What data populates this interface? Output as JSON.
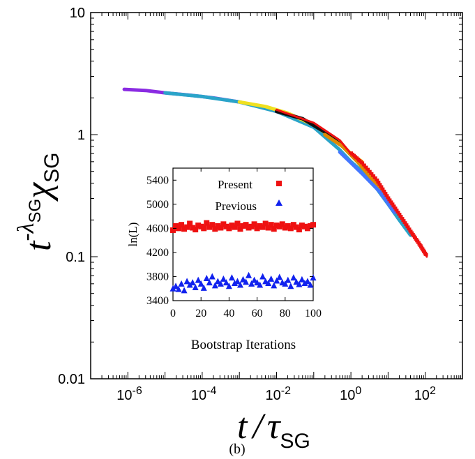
{
  "caption": "(b)",
  "chart_data": [
    {
      "type": "line",
      "xscale": "log",
      "yscale": "log",
      "xlim": [
        1e-07,
        1000
      ],
      "ylim": [
        0.01,
        10
      ],
      "xlabel": "t / τSG",
      "ylabel": "t−λSG χSG",
      "x_tick_labels": [
        {
          "base": "10",
          "exp": "-6",
          "value": 1e-06
        },
        {
          "base": "10",
          "exp": "-4",
          "value": 0.0001
        },
        {
          "base": "10",
          "exp": "-2",
          "value": 0.01
        },
        {
          "base": "10",
          "exp": "0",
          "value": 1
        },
        {
          "base": "10",
          "exp": "2",
          "value": 100
        }
      ],
      "y_tick_labels": [
        {
          "label": "0.01",
          "value": 0.01
        },
        {
          "label": "0.1",
          "value": 0.1
        },
        {
          "label": "1",
          "value": 1
        },
        {
          "label": "10",
          "value": 10
        }
      ],
      "grid": false,
      "series": [
        {
          "color": "#8a2be2",
          "x": [
            8e-07,
            3e-06,
            1e-05,
            5e-05,
            0.0002,
            0.001,
            0.005,
            0.02,
            0.05
          ],
          "y": [
            2.35,
            2.3,
            2.2,
            2.1,
            2.0,
            1.85,
            1.65,
            1.45,
            1.3
          ]
        },
        {
          "color": "#2aa4c9",
          "x": [
            1e-05,
            0.0001,
            0.001,
            0.01,
            0.1,
            0.5,
            1,
            2,
            5,
            10,
            20,
            40
          ],
          "y": [
            2.2,
            2.05,
            1.85,
            1.55,
            1.15,
            0.75,
            0.6,
            0.5,
            0.36,
            0.27,
            0.2,
            0.15
          ]
        },
        {
          "color": "#f0e020",
          "x": [
            0.001,
            0.005,
            0.02,
            0.1,
            0.4,
            1,
            2
          ],
          "y": [
            1.85,
            1.7,
            1.5,
            1.2,
            0.9,
            0.7,
            0.6
          ]
        },
        {
          "color": "#111111",
          "x": [
            0.01,
            0.05,
            0.2,
            0.6,
            1.5,
            3
          ],
          "y": [
            1.55,
            1.35,
            1.05,
            0.8,
            0.6,
            0.48
          ]
        },
        {
          "color": "#e08a00",
          "x": [
            0.2,
            0.6,
            1.5,
            4,
            10
          ],
          "y": [
            1.0,
            0.8,
            0.6,
            0.42,
            0.3
          ]
        },
        {
          "color": "#4477ff",
          "x": [
            0.5,
            2,
            6,
            15
          ],
          "y": [
            0.72,
            0.48,
            0.34,
            0.23
          ]
        },
        {
          "color": "#ee1111",
          "marker": "square",
          "x": [
            0.01,
            0.1,
            0.5,
            1,
            2,
            5,
            10,
            20,
            40,
            70,
            110
          ],
          "y": [
            1.6,
            1.25,
            0.9,
            0.7,
            0.58,
            0.42,
            0.3,
            0.22,
            0.16,
            0.125,
            0.1
          ]
        }
      ]
    },
    {
      "type": "scatter",
      "xlabel": "Bootstrap Iterations",
      "ylabel": "ln(L)",
      "xlim": [
        0,
        100
      ],
      "ylim": [
        3400,
        5600
      ],
      "x_ticks": [
        "0",
        "20",
        "40",
        "60",
        "80",
        "100"
      ],
      "y_ticks": [
        "3400",
        "3800",
        "4200",
        "4600",
        "5000",
        "5400"
      ],
      "legend_position": "top-right",
      "series": [
        {
          "name": "Present",
          "color": "#ee1111",
          "marker": "square",
          "x": [
            0,
            2,
            4,
            6,
            8,
            10,
            12,
            14,
            16,
            18,
            20,
            22,
            24,
            26,
            28,
            30,
            32,
            34,
            36,
            38,
            40,
            42,
            44,
            46,
            48,
            50,
            52,
            54,
            56,
            58,
            60,
            62,
            64,
            66,
            68,
            70,
            72,
            74,
            76,
            78,
            80,
            82,
            84,
            86,
            88,
            90,
            92,
            94,
            96,
            98,
            100
          ],
          "y": [
            4570,
            4640,
            4600,
            4660,
            4590,
            4620,
            4680,
            4610,
            4580,
            4650,
            4630,
            4600,
            4690,
            4620,
            4660,
            4590,
            4640,
            4610,
            4670,
            4630,
            4600,
            4650,
            4620,
            4680,
            4590,
            4640,
            4660,
            4610,
            4630,
            4670,
            4600,
            4640,
            4620,
            4680,
            4610,
            4660,
            4590,
            4650,
            4630,
            4670,
            4610,
            4640,
            4600,
            4660,
            4620,
            4580,
            4650,
            4630,
            4600,
            4640,
            4660
          ]
        },
        {
          "name": "Previous",
          "color": "#1122ee",
          "marker": "triangle",
          "x": [
            0,
            2,
            4,
            6,
            8,
            10,
            12,
            14,
            16,
            18,
            20,
            22,
            24,
            26,
            28,
            30,
            32,
            34,
            36,
            38,
            40,
            42,
            44,
            46,
            48,
            50,
            52,
            54,
            56,
            58,
            60,
            62,
            64,
            66,
            68,
            70,
            72,
            74,
            76,
            78,
            80,
            82,
            84,
            86,
            88,
            90,
            92,
            94,
            96,
            98,
            100
          ],
          "y": [
            3600,
            3640,
            3590,
            3680,
            3570,
            3720,
            3660,
            3700,
            3620,
            3740,
            3680,
            3610,
            3770,
            3700,
            3800,
            3650,
            3720,
            3680,
            3760,
            3700,
            3640,
            3780,
            3690,
            3720,
            3660,
            3750,
            3710,
            3820,
            3680,
            3740,
            3700,
            3660,
            3800,
            3720,
            3690,
            3760,
            3650,
            3730,
            3790,
            3700,
            3680,
            3740,
            3640,
            3780,
            3710,
            3670,
            3750,
            3690,
            3720,
            3660,
            3780
          ]
        }
      ]
    }
  ]
}
